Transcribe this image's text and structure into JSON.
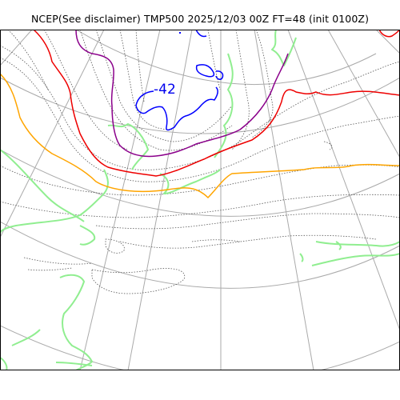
{
  "title": "NCEP(See disclaimer) TMP500 2025/12/03 00Z FT=48 (init 0100Z)",
  "contour_labels": [
    "-42"
  ],
  "colors": {
    "frame": "#000000",
    "graticule": "#aaaaaa",
    "temperature_contour": "#555555",
    "coastline": "#90ee90",
    "contour_blue": "#0000ff",
    "contour_purple": "#8b008b",
    "contour_red": "#ee0000",
    "contour_orange": "#ffa500"
  }
}
